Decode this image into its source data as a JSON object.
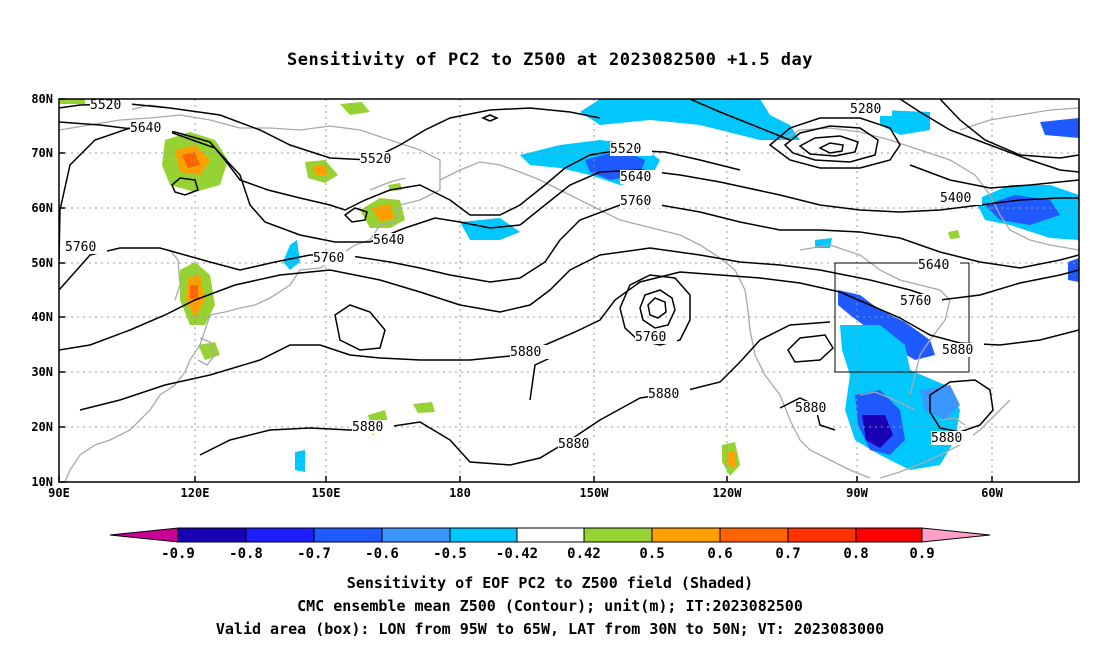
{
  "title": "Sensitivity of PC2 to Z500 at 2023082500 +1.5 day",
  "map": {
    "lat_ticks": [
      "10N",
      "20N",
      "30N",
      "40N",
      "50N",
      "60N",
      "70N",
      "80N"
    ],
    "lon_ticks": [
      "90E",
      "120E",
      "150E",
      "180",
      "150W",
      "120W",
      "90W",
      "60W"
    ],
    "valid_box": {
      "lon_from": "95W",
      "lon_to": "65W",
      "lat_from": "30N",
      "lat_to": "50N"
    },
    "contour_labels": [
      "5520",
      "5640",
      "5520",
      "5520",
      "5640",
      "5760",
      "5280",
      "5400",
      "5760",
      "5640",
      "5760",
      "5760",
      "5760",
      "5880",
      "5880",
      "5880",
      "5880",
      "5880",
      "5880",
      "5880"
    ]
  },
  "colorbar": {
    "labels": [
      "-0.9",
      "-0.8",
      "-0.7",
      "-0.6",
      "-0.5",
      "-0.42",
      "0.42",
      "0.5",
      "0.6",
      "0.7",
      "0.8",
      "0.9"
    ],
    "colors": [
      "#1a00b4",
      "#1e1eff",
      "#1e5aff",
      "#3c96ff",
      "#00c8ff",
      "#ffffff",
      "#96d232",
      "#ffa000",
      "#ff6400",
      "#ff3200",
      "#ff0000"
    ],
    "low_extension_color": "#c80096",
    "high_extension_color": "#ffa0c8"
  },
  "captions": {
    "line1": "Sensitivity of EOF PC2 to Z500 field (Shaded)",
    "line2": "CMC ensemble mean Z500 (Contour); unit(m); IT:2023082500",
    "line3": "Valid area (box): LON from 95W to 65W, LAT from 30N to 50N; VT: 2023083000"
  }
}
